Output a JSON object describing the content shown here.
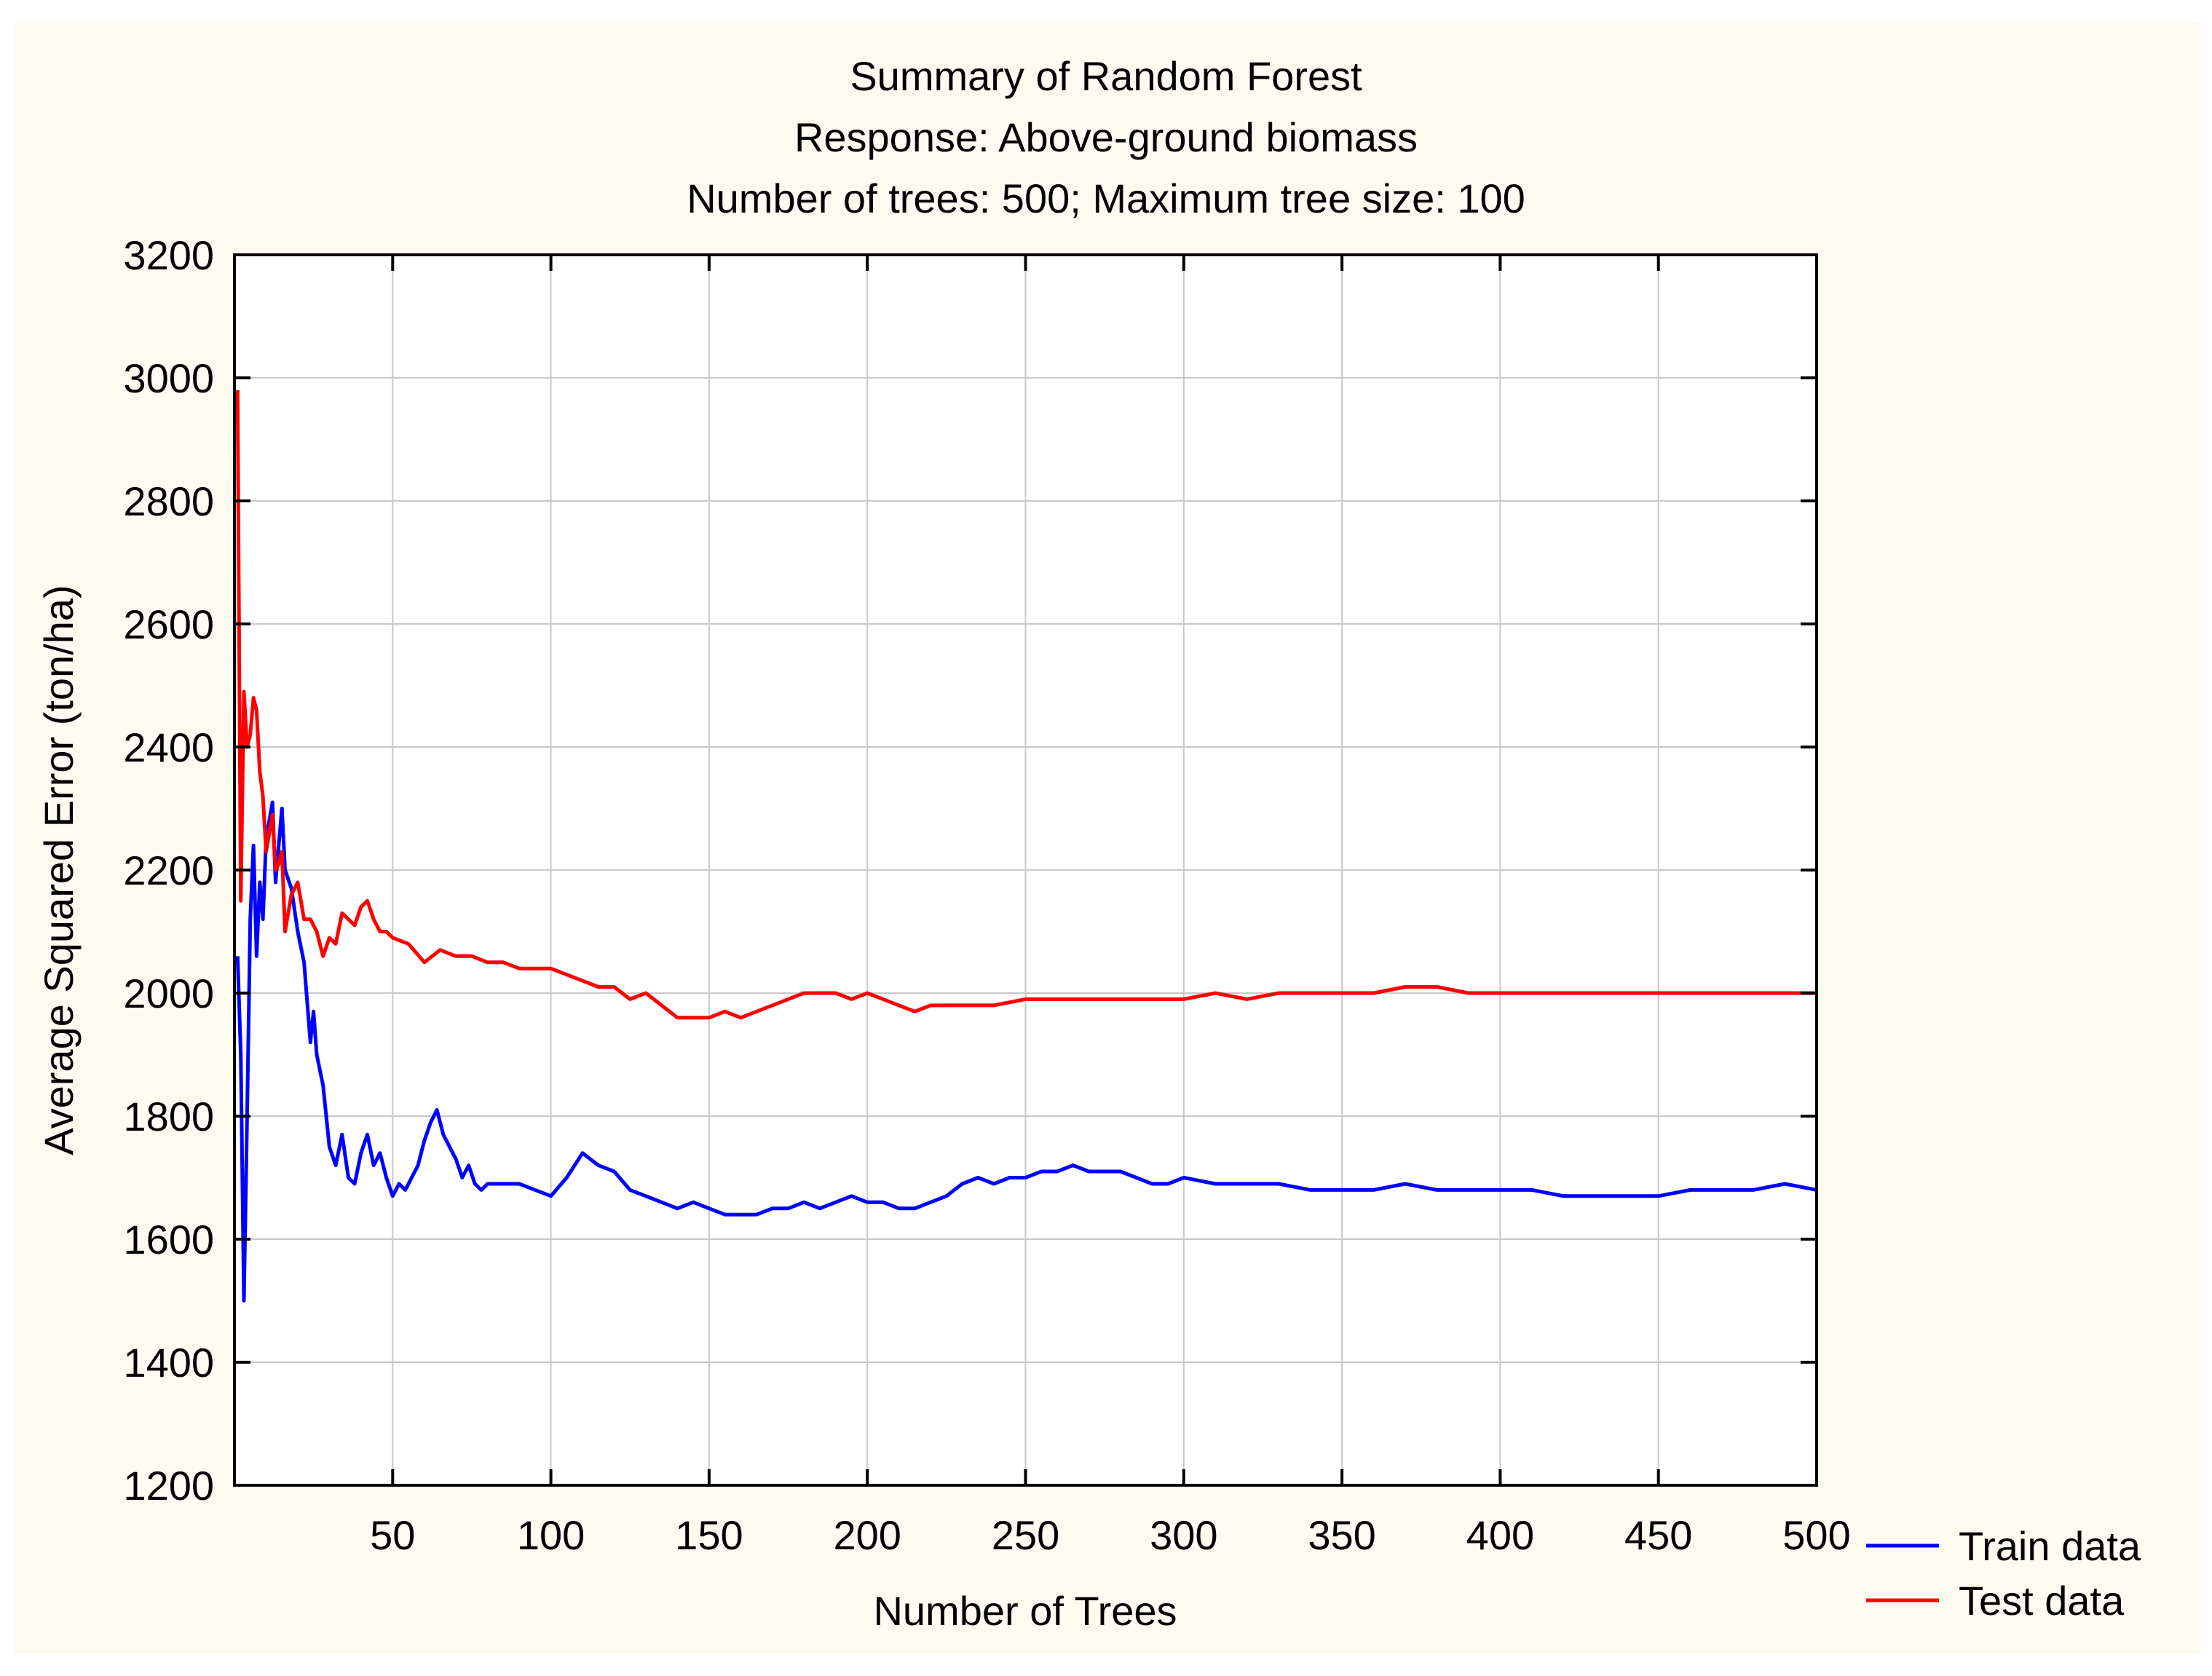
{
  "chart_data": {
    "type": "line",
    "title": [
      "Summary of Random Forest",
      "Response: Above-ground biomass",
      "Number of trees: 500; Maximum tree size: 100"
    ],
    "xlabel": "Number of Trees",
    "ylabel": "Average Squared Error (ton/ha)",
    "xlim": [
      0,
      500
    ],
    "ylim": [
      1200,
      3200
    ],
    "x_ticks": [
      50,
      100,
      150,
      200,
      250,
      300,
      350,
      400,
      450,
      500
    ],
    "y_ticks": [
      1200,
      1400,
      1600,
      1800,
      2000,
      2200,
      2400,
      2600,
      2800,
      3000,
      3200
    ],
    "grid": true,
    "legend_position": "bottom-right, outside plot",
    "series": [
      {
        "name": "Train data",
        "color": "#0000ff",
        "x": [
          1,
          2,
          3,
          4,
          5,
          6,
          7,
          8,
          9,
          10,
          12,
          13,
          14,
          15,
          16,
          18,
          20,
          22,
          24,
          25,
          26,
          28,
          30,
          32,
          34,
          36,
          38,
          40,
          42,
          44,
          46,
          48,
          50,
          52,
          54,
          56,
          58,
          60,
          62,
          64,
          66,
          68,
          70,
          72,
          74,
          76,
          78,
          80,
          85,
          90,
          95,
          100,
          105,
          110,
          115,
          120,
          125,
          130,
          135,
          140,
          145,
          150,
          155,
          160,
          165,
          170,
          175,
          180,
          185,
          190,
          195,
          200,
          205,
          210,
          215,
          220,
          225,
          230,
          235,
          240,
          245,
          250,
          255,
          260,
          265,
          270,
          275,
          280,
          285,
          290,
          295,
          300,
          310,
          320,
          330,
          340,
          350,
          360,
          370,
          380,
          390,
          400,
          410,
          420,
          430,
          440,
          450,
          460,
          470,
          480,
          490,
          500
        ],
        "y": [
          2060,
          1900,
          1500,
          1800,
          2120,
          2240,
          2060,
          2180,
          2120,
          2250,
          2310,
          2180,
          2240,
          2300,
          2200,
          2170,
          2100,
          2050,
          1920,
          1970,
          1900,
          1850,
          1750,
          1720,
          1770,
          1700,
          1690,
          1740,
          1770,
          1720,
          1740,
          1700,
          1670,
          1690,
          1680,
          1700,
          1720,
          1760,
          1790,
          1810,
          1770,
          1750,
          1730,
          1700,
          1720,
          1690,
          1680,
          1690,
          1690,
          1690,
          1680,
          1670,
          1700,
          1740,
          1720,
          1710,
          1680,
          1670,
          1660,
          1650,
          1660,
          1650,
          1640,
          1640,
          1640,
          1650,
          1650,
          1660,
          1650,
          1660,
          1670,
          1660,
          1660,
          1650,
          1650,
          1660,
          1670,
          1690,
          1700,
          1690,
          1700,
          1700,
          1710,
          1710,
          1720,
          1710,
          1710,
          1710,
          1700,
          1690,
          1690,
          1700,
          1690,
          1690,
          1690,
          1680,
          1680,
          1680,
          1690,
          1680,
          1680,
          1680,
          1680,
          1670,
          1670,
          1670,
          1670,
          1680,
          1680,
          1680,
          1690,
          1680
        ]
      },
      {
        "name": "Test data",
        "color": "#ff0000",
        "x": [
          1,
          2,
          3,
          4,
          5,
          6,
          7,
          8,
          9,
          10,
          12,
          13,
          14,
          15,
          16,
          18,
          20,
          22,
          24,
          26,
          28,
          30,
          32,
          34,
          36,
          38,
          40,
          42,
          44,
          46,
          48,
          50,
          55,
          60,
          65,
          70,
          75,
          80,
          85,
          90,
          95,
          100,
          105,
          110,
          115,
          120,
          125,
          130,
          135,
          140,
          145,
          150,
          155,
          160,
          165,
          170,
          175,
          180,
          185,
          190,
          195,
          200,
          205,
          210,
          215,
          220,
          225,
          230,
          240,
          250,
          260,
          270,
          280,
          290,
          300,
          310,
          320,
          330,
          340,
          350,
          360,
          370,
          380,
          390,
          400,
          410,
          420,
          430,
          440,
          450,
          460,
          470,
          480,
          490,
          500
        ],
        "y": [
          2980,
          2150,
          2490,
          2400,
          2420,
          2480,
          2460,
          2360,
          2320,
          2230,
          2290,
          2200,
          2210,
          2230,
          2100,
          2160,
          2180,
          2120,
          2120,
          2100,
          2060,
          2090,
          2080,
          2130,
          2120,
          2110,
          2140,
          2150,
          2120,
          2100,
          2100,
          2090,
          2080,
          2050,
          2070,
          2060,
          2060,
          2050,
          2050,
          2040,
          2040,
          2040,
          2030,
          2020,
          2010,
          2010,
          1990,
          2000,
          1980,
          1960,
          1960,
          1960,
          1970,
          1960,
          1970,
          1980,
          1990,
          2000,
          2000,
          2000,
          1990,
          2000,
          1990,
          1980,
          1970,
          1980,
          1980,
          1980,
          1980,
          1990,
          1990,
          1990,
          1990,
          1990,
          1990,
          2000,
          1990,
          2000,
          2000,
          2000,
          2000,
          2010,
          2010,
          2000,
          2000,
          2000,
          2000,
          2000,
          2000,
          2000,
          2000,
          2000,
          2000,
          2000,
          2000
        ]
      }
    ]
  }
}
